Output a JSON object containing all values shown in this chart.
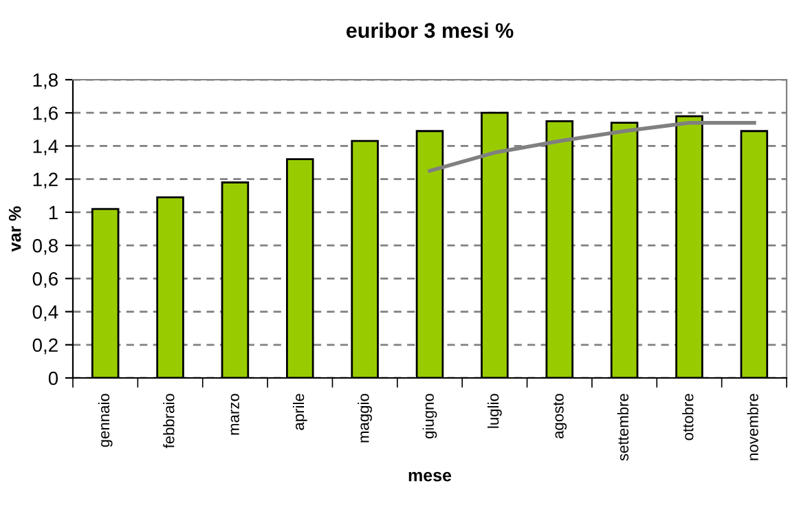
{
  "chart_data": {
    "type": "bar",
    "title": "euribor 3 mesi %",
    "xlabel": "mese",
    "ylabel": "var %",
    "categories": [
      "gennaio",
      "febbraio",
      "marzo",
      "aprile",
      "maggio",
      "giugno",
      "luglio",
      "agosto",
      "settembre",
      "ottobre",
      "novembre"
    ],
    "series": [
      {
        "color": "#99cc00",
        "values": [
          1.02,
          1.09,
          1.18,
          1.32,
          1.43,
          1.49,
          1.6,
          1.55,
          1.54,
          1.58,
          1.49
        ]
      },
      {
        "type": "line",
        "color": "#808080",
        "values": [
          null,
          null,
          null,
          null,
          null,
          1.25,
          1.36,
          1.43,
          1.49,
          1.54,
          1.54
        ]
      }
    ],
    "ylim": [
      0,
      1.8
    ],
    "yticks": [
      0,
      {
        "value": 0.2,
        "label": "0,2"
      },
      {
        "value": 0.4,
        "label": "0,4"
      },
      {
        "value": 0.6,
        "label": "0,6"
      },
      {
        "value": 0.8,
        "label": "0,8"
      },
      1,
      {
        "value": 1.2,
        "label": "1,2"
      },
      {
        "value": 1.4,
        "label": "1,4"
      },
      {
        "value": 1.6,
        "label": "1,6"
      },
      {
        "value": 1.8,
        "label": "1,8"
      }
    ],
    "grid": "y",
    "legend": false
  }
}
